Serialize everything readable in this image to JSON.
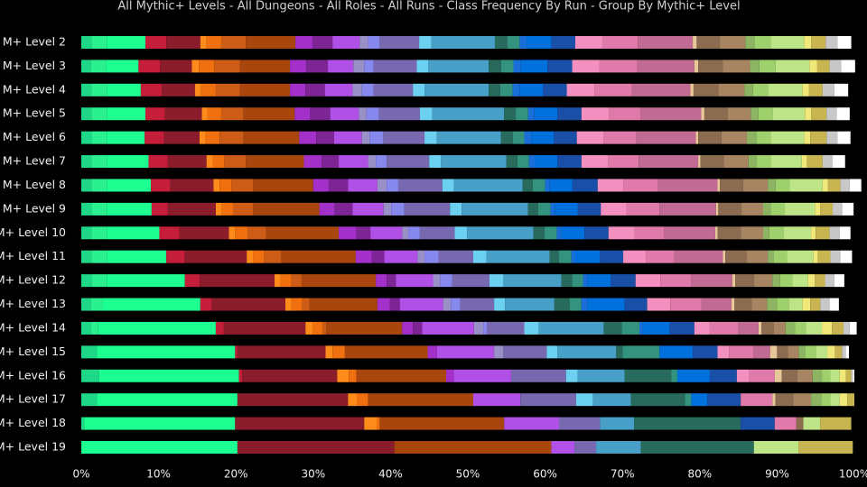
{
  "chart_data": {
    "type": "bar",
    "orientation": "horizontal",
    "stacked": true,
    "title": "All Mythic+ Levels - All Dungeons - All Roles - All Runs - Class Frequency By Run - Group By Mythic+ Level",
    "categories": [
      "M+ Level 2",
      "M+ Level 3",
      "M+ Level 4",
      "M+ Level 5",
      "M+ Level 6",
      "M+ Level 7",
      "M+ Level 8",
      "M+ Level 9",
      "M+ Level 10",
      "M+ Level 11",
      "M+ Level 12",
      "M+ Level 13",
      "M+ Level 14",
      "M+ Level 15",
      "M+ Level 16",
      "M+ Level 17",
      "M+ Level 18",
      "M+ Level 19"
    ],
    "xlim": [
      0,
      100
    ],
    "xticks": [
      {
        "value": 0,
        "label": "0%"
      },
      {
        "value": 10,
        "label": "10%"
      },
      {
        "value": 20,
        "label": "20%"
      },
      {
        "value": 30,
        "label": "30%"
      },
      {
        "value": 40,
        "label": "40%"
      },
      {
        "value": 50,
        "label": "50%"
      },
      {
        "value": 60,
        "label": "60%"
      },
      {
        "value": 70,
        "label": "70%"
      },
      {
        "value": 80,
        "label": "80%"
      },
      {
        "value": 90,
        "label": "90%"
      },
      {
        "value": 100,
        "label": "100%"
      }
    ],
    "grid": false,
    "series": [
      {
        "color": "#1ed888",
        "values": [
          1.3,
          1.2,
          1.3,
          1.3,
          1.3,
          1.3,
          1.3,
          1.3,
          1.3,
          1.3,
          1.3,
          1.2,
          1.2,
          2.0,
          2.3,
          2.0,
          0.4,
          0
        ]
      },
      {
        "color": "#2af090",
        "values": [
          2.0,
          2.0,
          2.0,
          2.0,
          2.0,
          2.0,
          2.0,
          2.0,
          2.0,
          2.0,
          2.0,
          1.5,
          1.0,
          0,
          0,
          0,
          0,
          0
        ]
      },
      {
        "color": "#1eff92",
        "values": [
          5.0,
          4.2,
          4.4,
          5.0,
          4.9,
          5.4,
          5.7,
          5.8,
          6.8,
          7.7,
          10.1,
          12.7,
          15.2,
          17.9,
          18.1,
          18.2,
          19.5,
          20.2
        ]
      },
      {
        "color": "#c41e3a",
        "values": [
          2.7,
          2.8,
          2.7,
          2.5,
          2.5,
          2.5,
          2.5,
          2.1,
          2.6,
          2.4,
          1.9,
          1.5,
          1.0,
          0.3,
          0.4,
          0,
          0,
          0
        ]
      },
      {
        "color": "#8a1c2c",
        "values": [
          4.4,
          4.1,
          4.3,
          4.8,
          4.6,
          5.0,
          5.6,
          6.2,
          6.4,
          8.0,
          9.7,
          9.5,
          10.6,
          11.4,
          12.3,
          14.3,
          16.7,
          20.3
        ]
      },
      {
        "color": "#ff8c1a",
        "values": [
          0.8,
          0.9,
          0.8,
          0.7,
          0.8,
          0.8,
          0.8,
          0.8,
          0.8,
          0.8,
          0.8,
          0.8,
          0.9,
          0.9,
          1.5,
          1.2,
          1.6,
          0
        ]
      },
      {
        "color": "#f07010",
        "values": [
          1.9,
          2.0,
          1.9,
          1.8,
          1.8,
          1.5,
          1.5,
          1.5,
          1.6,
          1.4,
          1.4,
          1.4,
          1.3,
          1.6,
          1.0,
          1.4,
          0.4,
          0
        ]
      },
      {
        "color": "#cc5c16",
        "values": [
          3.2,
          3.3,
          3.1,
          2.9,
          3.1,
          2.8,
          2.8,
          2.5,
          2.4,
          2.3,
          1.3,
          0.9,
          0.5,
          0,
          0,
          0,
          0,
          0
        ]
      },
      {
        "color": "#a8460e",
        "values": [
          6.4,
          6.5,
          6.5,
          6.6,
          7.2,
          7.5,
          7.8,
          8.6,
          9.4,
          9.6,
          9.6,
          8.8,
          9.8,
          10.7,
          11.6,
          13.6,
          16.1,
          20.3
        ]
      },
      {
        "color": "#a330c9",
        "values": [
          2.2,
          2.1,
          2.0,
          2.0,
          2.2,
          2.3,
          2.0,
          2.0,
          2.3,
          2.1,
          1.4,
          1.6,
          1.4,
          1.2,
          1.0,
          0,
          0,
          0
        ]
      },
      {
        "color": "#7e2596",
        "values": [
          2.6,
          2.8,
          2.5,
          2.6,
          2.3,
          2.2,
          2.5,
          2.3,
          1.8,
          1.6,
          1.2,
          1.3,
          1.2,
          0,
          0,
          0,
          0,
          0
        ]
      },
      {
        "color": "#b150e6",
        "values": [
          3.5,
          3.3,
          3.6,
          3.7,
          3.6,
          3.8,
          3.8,
          4.0,
          4.1,
          4.3,
          4.8,
          5.6,
          6.7,
          7.4,
          7.4,
          6.1,
          7.1,
          3.0
        ]
      },
      {
        "color": "#9a90c8",
        "values": [
          1.1,
          1.4,
          1.2,
          1.0,
          1.0,
          1.0,
          1.2,
          1.0,
          0.8,
          0.9,
          0.9,
          1.0,
          1.2,
          1.2,
          0,
          0,
          0,
          0
        ]
      },
      {
        "color": "#8788ee",
        "values": [
          1.5,
          1.2,
          1.5,
          1.6,
          1.8,
          1.4,
          1.5,
          1.7,
          1.5,
          1.8,
          1.6,
          1.2,
          0.5,
          0,
          0,
          0,
          0,
          0
        ]
      },
      {
        "color": "#7868b0",
        "values": [
          5.1,
          5.6,
          5.1,
          5.3,
          5.3,
          5.5,
          5.7,
          5.9,
          4.5,
          4.5,
          4.8,
          4.4,
          4.8,
          5.6,
          7.1,
          7.2,
          5.3,
          2.8
        ]
      },
      {
        "color": "#6cd0f0",
        "values": [
          1.6,
          1.5,
          1.5,
          1.6,
          1.6,
          1.5,
          1.5,
          1.5,
          1.6,
          1.7,
          1.8,
          1.4,
          1.9,
          1.4,
          1.5,
          2.2,
          0,
          0
        ]
      },
      {
        "color": "#48a0c8",
        "values": [
          8.2,
          7.8,
          8.3,
          9.3,
          8.3,
          8.5,
          8.9,
          8.6,
          8.6,
          8.2,
          7.5,
          6.4,
          8.4,
          7.6,
          6.1,
          4.9,
          4.4,
          5.8
        ]
      },
      {
        "color": "#286a5c",
        "values": [
          1.6,
          1.6,
          1.5,
          1.5,
          1.5,
          1.4,
          1.3,
          1.3,
          1.4,
          1.2,
          1.4,
          2.0,
          2.3,
          0.8,
          6.0,
          7.0,
          13.8,
          14.6
        ]
      },
      {
        "color": "#33937f",
        "values": [
          1.6,
          1.6,
          1.6,
          1.6,
          1.5,
          1.5,
          1.6,
          1.6,
          1.6,
          1.6,
          1.4,
          1.5,
          2.3,
          4.8,
          0.8,
          0.8,
          0,
          0
        ]
      },
      {
        "color": "#1a6ed8",
        "values": [
          0.9,
          0.9,
          0.9,
          0.8,
          0.9,
          0.8,
          0.6,
          0.6,
          0.6,
          0.5,
          0.6,
          0.8,
          0.4,
          0,
          0,
          0,
          0,
          0
        ]
      },
      {
        "color": "#0070dd",
        "values": [
          3.2,
          3.5,
          3.0,
          3.0,
          2.9,
          2.9,
          2.9,
          2.9,
          3.0,
          3.2,
          3.0,
          4.8,
          3.5,
          4.3,
          4.2,
          2.1,
          0,
          0
        ]
      },
      {
        "color": "#1a4fa8",
        "values": [
          3.1,
          3.2,
          3.1,
          3.1,
          3.0,
          3.1,
          3.3,
          3.0,
          3.1,
          3.0,
          3.2,
          2.9,
          3.2,
          3.2,
          3.5,
          4.3,
          4.4,
          0
        ]
      },
      {
        "color": "#f490c0",
        "values": [
          3.5,
          3.5,
          3.6,
          3.6,
          3.5,
          3.5,
          3.3,
          3.3,
          3.4,
          3.0,
          3.2,
          3.0,
          2.0,
          1.5,
          1.6,
          0,
          0,
          0
        ]
      },
      {
        "color": "#e07aaa",
        "values": [
          4.6,
          4.9,
          4.8,
          4.1,
          4.2,
          3.9,
          4.5,
          4.3,
          3.8,
          3.6,
          4.0,
          4.0,
          3.7,
          3.2,
          3.3,
          4.1,
          2.8,
          0
        ]
      },
      {
        "color": "#c06a94",
        "values": [
          7.1,
          7.4,
          7.6,
          7.8,
          7.7,
          7.7,
          7.7,
          7.3,
          6.6,
          6.3,
          5.3,
          3.9,
          2.6,
          2.1,
          0,
          0,
          0,
          0
        ]
      },
      {
        "color": "#e8c898",
        "values": [
          0.5,
          0.5,
          0.4,
          0.4,
          0.3,
          0.3,
          0.3,
          0.3,
          0.3,
          0.3,
          0.4,
          0.4,
          0.4,
          0.9,
          0.9,
          0.4,
          0,
          0
        ]
      },
      {
        "color": "#8c6c50",
        "values": [
          3.0,
          3.2,
          3.2,
          3.0,
          3.0,
          3.0,
          3.0,
          3.0,
          3.0,
          2.8,
          2.4,
          2.2,
          1.6,
          1.4,
          2.0,
          2.3,
          0.9,
          0
        ]
      },
      {
        "color": "#a88562",
        "values": [
          3.3,
          3.5,
          3.4,
          3.0,
          3.3,
          3.2,
          3.2,
          2.8,
          2.9,
          2.7,
          2.4,
          2.0,
          1.5,
          1.4,
          2.0,
          2.3,
          0,
          0
        ]
      },
      {
        "color": "#8cb462",
        "values": [
          1.2,
          1.2,
          1.1,
          1.0,
          1.2,
          1.0,
          1.0,
          1.0,
          0.8,
          0.8,
          1.0,
          1.3,
          1.2,
          0.8,
          1.2,
          1.3,
          0,
          0
        ]
      },
      {
        "color": "#9ed06c",
        "values": [
          2.1,
          2.1,
          2.0,
          1.8,
          1.9,
          1.9,
          1.8,
          1.8,
          1.8,
          1.7,
          1.6,
          1.5,
          1.4,
          1.4,
          1.1,
          1.2,
          0,
          0
        ]
      },
      {
        "color": "#bde486",
        "values": [
          4.3,
          4.4,
          4.4,
          4.2,
          4.3,
          4.0,
          4.3,
          3.9,
          3.6,
          3.4,
          2.0,
          1.8,
          2.1,
          1.5,
          1.2,
          1.2,
          2.2,
          5.8
        ]
      },
      {
        "color": "#f0e878",
        "values": [
          0.9,
          1.0,
          0.8,
          0.8,
          0.8,
          0.7,
          0.7,
          0.7,
          0.6,
          0.6,
          0.9,
          1.0,
          1.3,
          1.0,
          0.8,
          1.0,
          0,
          0
        ]
      },
      {
        "color": "#c8b450",
        "values": [
          1.9,
          1.6,
          1.8,
          2.0,
          2.1,
          2.0,
          1.6,
          1.6,
          1.8,
          1.6,
          1.3,
          1.3,
          1.5,
          0.9,
          0.7,
          0.9,
          4.0,
          7.0
        ]
      },
      {
        "color": "#c8c8c8",
        "values": [
          1.5,
          1.5,
          1.5,
          1.3,
          1.4,
          1.3,
          1.2,
          1.2,
          1.3,
          1.3,
          1.2,
          1.2,
          0.8,
          0.5,
          0.2,
          0,
          0,
          0
        ]
      },
      {
        "color": "#ffffff",
        "values": [
          1.8,
          1.8,
          1.8,
          1.7,
          1.7,
          1.6,
          1.5,
          1.5,
          1.4,
          1.5,
          1.3,
          1.2,
          0.9,
          0.4,
          0.2,
          0,
          0,
          0
        ]
      }
    ]
  }
}
